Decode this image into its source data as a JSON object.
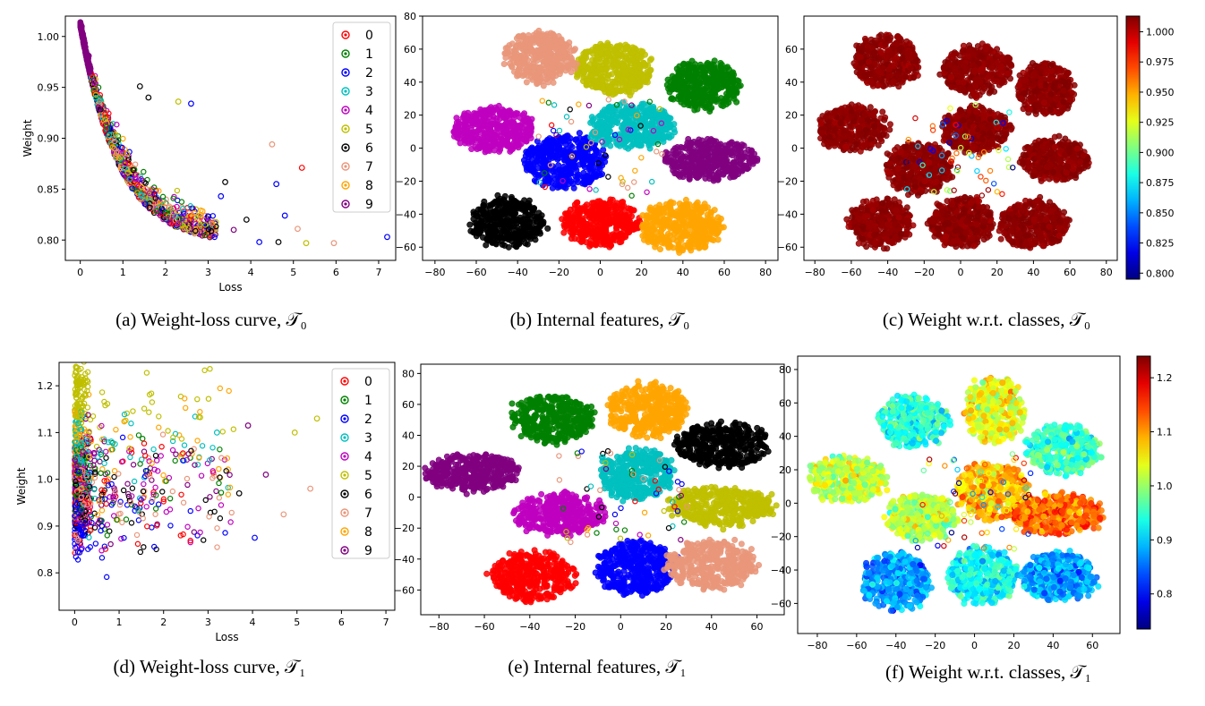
{
  "colors": {
    "classes": [
      "#ff0000",
      "#008000",
      "#0000ff",
      "#00bfbf",
      "#bf00bf",
      "#bfbf00",
      "#000000",
      "#e9967a",
      "#ffa500",
      "#800080"
    ]
  },
  "chart_data": [
    {
      "id": "a",
      "type": "scatter",
      "caption": "(a)  Weight-loss curve, 𝒯₀",
      "xlabel": "Loss",
      "ylabel": "Weight",
      "xlim": [
        -0.35,
        7.4
      ],
      "ylim": [
        0.78,
        1.02
      ],
      "xticks": [
        0,
        1,
        2,
        3,
        4,
        5,
        6,
        7
      ],
      "yticks": [
        0.8,
        0.85,
        0.9,
        0.95,
        1.0
      ],
      "ytick_labels": [
        "0.80",
        "0.85",
        "0.90",
        "0.95",
        "1.00"
      ],
      "legend": {
        "position": "top-right",
        "entries": [
          "0",
          "1",
          "2",
          "3",
          "4",
          "5",
          "6",
          "7",
          "8",
          "9"
        ]
      },
      "model": "decay",
      "outliers": [
        [
          5.2,
          0.871,
          0
        ],
        [
          4.5,
          0.894,
          7
        ],
        [
          4.6,
          0.855,
          2
        ],
        [
          4.8,
          0.824,
          2
        ],
        [
          5.3,
          0.797,
          5
        ],
        [
          5.95,
          0.797,
          7
        ],
        [
          4.2,
          0.798,
          2
        ],
        [
          4.65,
          0.798,
          6
        ],
        [
          7.2,
          0.803,
          2
        ],
        [
          5.1,
          0.811,
          7
        ],
        [
          3.4,
          0.857,
          6
        ],
        [
          3.3,
          0.843,
          2
        ],
        [
          2.6,
          0.934,
          2
        ],
        [
          2.3,
          0.936,
          5
        ],
        [
          1.4,
          0.951,
          6
        ],
        [
          1.6,
          0.94,
          6
        ],
        [
          3.9,
          0.82,
          6
        ],
        [
          3.6,
          0.81,
          9
        ]
      ]
    },
    {
      "id": "b",
      "type": "scatter",
      "caption": "(b)  Internal features, 𝒯₀",
      "xlim": [
        -86,
        86
      ],
      "ylim": [
        -68,
        80
      ],
      "xticks": [
        -80,
        -60,
        -40,
        -20,
        0,
        20,
        40,
        60,
        80
      ],
      "yticks": [
        -60,
        -40,
        -20,
        0,
        20,
        40,
        60,
        80
      ],
      "clusters": [
        {
          "label": "0",
          "cx": 0,
          "cy": -45,
          "rx": 18,
          "ry": 14
        },
        {
          "label": "1",
          "cx": 50,
          "cy": 38,
          "rx": 17,
          "ry": 14
        },
        {
          "label": "2",
          "cx": -17,
          "cy": -8,
          "rx": 20,
          "ry": 15
        },
        {
          "label": "3",
          "cx": 15,
          "cy": 13,
          "rx": 20,
          "ry": 13
        },
        {
          "label": "4",
          "cx": -51,
          "cy": 11,
          "rx": 20,
          "ry": 13
        },
        {
          "label": "5",
          "cx": 7,
          "cy": 48,
          "rx": 19,
          "ry": 15
        },
        {
          "label": "6",
          "cx": -45,
          "cy": -45,
          "rx": 18,
          "ry": 14
        },
        {
          "label": "7",
          "cx": -29,
          "cy": 55,
          "rx": 17,
          "ry": 15
        },
        {
          "label": "8",
          "cx": 39,
          "cy": -47,
          "rx": 20,
          "ry": 15
        },
        {
          "label": "9",
          "cx": 53,
          "cy": -7,
          "rx": 22,
          "ry": 12
        }
      ]
    },
    {
      "id": "c",
      "type": "scatter",
      "caption": "(c)  Weight w.r.t. classes, 𝒯₀",
      "xlim": [
        -86,
        86
      ],
      "ylim": [
        -68,
        80
      ],
      "xticks": [
        -80,
        -60,
        -40,
        -20,
        0,
        20,
        40,
        60,
        80
      ],
      "yticks": [
        -60,
        -40,
        -20,
        0,
        20,
        40,
        60
      ],
      "colorbar": {
        "min": 0.795,
        "max": 1.013,
        "ticks": [
          0.8,
          0.825,
          0.85,
          0.875,
          0.9,
          0.925,
          0.95,
          0.975,
          1.0
        ],
        "tick_labels": [
          "0.800",
          "0.825",
          "0.850",
          "0.875",
          "0.900",
          "0.925",
          "0.950",
          "0.975",
          "1.000"
        ],
        "cmap": "jet"
      },
      "clusters": [
        {
          "cx": -41,
          "cy": 53,
          "rx": 18,
          "ry": 15,
          "w": 1.01
        },
        {
          "cx": 9,
          "cy": 47,
          "rx": 19,
          "ry": 15,
          "w": 1.01
        },
        {
          "cx": 46,
          "cy": 36,
          "rx": 16,
          "ry": 15,
          "w": 1.01
        },
        {
          "cx": -59,
          "cy": 12,
          "rx": 19,
          "ry": 13,
          "w": 1.01
        },
        {
          "cx": 8,
          "cy": 11,
          "rx": 18,
          "ry": 13,
          "w": 1.01
        },
        {
          "cx": 52,
          "cy": -7,
          "rx": 18,
          "ry": 12,
          "w": 1.01
        },
        {
          "cx": -23,
          "cy": -12,
          "rx": 18,
          "ry": 15,
          "w": 1.01
        },
        {
          "cx": -44,
          "cy": -45,
          "rx": 17,
          "ry": 14,
          "w": 1.01
        },
        {
          "cx": 1,
          "cy": -45,
          "rx": 17,
          "ry": 14,
          "w": 1.01
        },
        {
          "cx": 40,
          "cy": -46,
          "rx": 18,
          "ry": 14,
          "w": 1.01
        }
      ]
    },
    {
      "id": "d",
      "type": "scatter",
      "caption": "(d)  Weight-loss curve, 𝒯₁",
      "xlabel": "Loss",
      "ylabel": "Weight",
      "xlim": [
        -0.35,
        7.2
      ],
      "ylim": [
        0.72,
        1.25
      ],
      "xticks": [
        0,
        1,
        2,
        3,
        4,
        5,
        6,
        7
      ],
      "yticks": [
        0.8,
        0.9,
        1.0,
        1.1,
        1.2
      ],
      "ytick_labels": [
        "0.8",
        "0.9",
        "1.0",
        "1.1",
        "1.2"
      ],
      "legend": {
        "position": "top-right",
        "entries": [
          "0",
          "1",
          "2",
          "3",
          "4",
          "5",
          "6",
          "7",
          "8",
          "9"
        ]
      },
      "model": "bands",
      "class_weights": [
        0.97,
        1.0,
        0.93,
        1.04,
        0.98,
        1.17,
        0.96,
        0.96,
        1.04,
        1.01
      ],
      "outliers": [
        [
          5.45,
          1.13,
          5
        ],
        [
          4.95,
          1.1,
          5
        ],
        [
          5.3,
          0.98,
          7
        ],
        [
          4.7,
          0.925,
          7
        ],
        [
          4.3,
          1.01,
          9
        ],
        [
          4.05,
          0.875,
          2
        ],
        [
          3.7,
          0.97,
          6
        ],
        [
          3.9,
          1.115,
          9
        ],
        [
          3.2,
          1.1,
          3
        ]
      ]
    },
    {
      "id": "e",
      "type": "scatter",
      "caption": "(e)  Internal features, 𝒯₁",
      "xlim": [
        -88,
        72
      ],
      "ylim": [
        -76,
        86
      ],
      "xticks": [
        -80,
        -60,
        -40,
        -20,
        0,
        20,
        40,
        60
      ],
      "yticks": [
        -60,
        -40,
        -20,
        0,
        20,
        40,
        60,
        80
      ],
      "clusters": [
        {
          "label": "0",
          "cx": -39,
          "cy": -51,
          "rx": 18,
          "ry": 16
        },
        {
          "label": "1",
          "cx": -30,
          "cy": 51,
          "rx": 18,
          "ry": 15
        },
        {
          "label": "2",
          "cx": 7,
          "cy": -46,
          "rx": 17,
          "ry": 17
        },
        {
          "label": "3",
          "cx": 7,
          "cy": 15,
          "rx": 16,
          "ry": 16
        },
        {
          "label": "4",
          "cx": -27,
          "cy": -11,
          "rx": 20,
          "ry": 13
        },
        {
          "label": "5",
          "cx": 44,
          "cy": -6,
          "rx": 23,
          "ry": 12
        },
        {
          "label": "6",
          "cx": 45,
          "cy": 34,
          "rx": 20,
          "ry": 14
        },
        {
          "label": "7",
          "cx": 40,
          "cy": -44,
          "rx": 20,
          "ry": 15
        },
        {
          "label": "8",
          "cx": 12,
          "cy": 56,
          "rx": 17,
          "ry": 17
        },
        {
          "label": "9",
          "cx": -65,
          "cy": 16,
          "rx": 20,
          "ry": 12
        }
      ]
    },
    {
      "id": "f",
      "type": "scatter",
      "caption": "(f)  Weight w.r.t. classes, 𝒯₁",
      "xlim": [
        -90,
        74
      ],
      "ylim": [
        -78,
        88
      ],
      "xticks": [
        -80,
        -60,
        -40,
        -20,
        0,
        20,
        40,
        60
      ],
      "yticks": [
        -60,
        -40,
        -20,
        0,
        20,
        40,
        60,
        80
      ],
      "colorbar": {
        "min": 0.735,
        "max": 1.24,
        "ticks": [
          0.8,
          0.9,
          1.0,
          1.1,
          1.2
        ],
        "tick_labels": [
          "0.8",
          "0.9",
          "1.0",
          "1.1",
          "1.2"
        ],
        "cmap": "jet"
      },
      "clusters": [
        {
          "cx": -31,
          "cy": 49,
          "rx": 17,
          "ry": 15,
          "w": 0.94
        },
        {
          "cx": 10,
          "cy": 56,
          "rx": 15,
          "ry": 19,
          "w": 1.04
        },
        {
          "cx": 45,
          "cy": 32,
          "rx": 18,
          "ry": 15,
          "w": 0.95
        },
        {
          "cx": -65,
          "cy": 14,
          "rx": 20,
          "ry": 13,
          "w": 1.02
        },
        {
          "cx": -27,
          "cy": -8,
          "rx": 18,
          "ry": 13,
          "w": 1.02
        },
        {
          "cx": 9,
          "cy": 7,
          "rx": 18,
          "ry": 17,
          "w": 1.09
        },
        {
          "cx": 42,
          "cy": -7,
          "rx": 23,
          "ry": 12,
          "w": 1.13
        },
        {
          "cx": -40,
          "cy": -47,
          "rx": 17,
          "ry": 17,
          "w": 0.87
        },
        {
          "cx": 4,
          "cy": -44,
          "rx": 17,
          "ry": 17,
          "w": 0.93
        },
        {
          "cx": 43,
          "cy": -44,
          "rx": 19,
          "ry": 14,
          "w": 0.88
        }
      ]
    }
  ]
}
